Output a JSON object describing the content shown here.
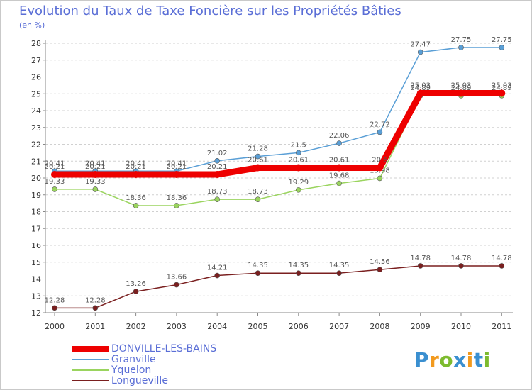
{
  "title": "Evolution du Taux de Taxe Foncière sur les Propriétés Bâties",
  "subtitle": "(en %)",
  "brand": {
    "letters": [
      "P",
      "r",
      "o",
      "x",
      "i",
      "t",
      "i"
    ],
    "colors": [
      "#3a8fd0",
      "#f29a1e",
      "#7dbb2f",
      "#3a8fd0",
      "#f29a1e",
      "#3a8fd0",
      "#7dbb2f"
    ]
  },
  "chart_data": {
    "type": "line",
    "title": "Evolution du Taux de Taxe Foncière sur les Propriétés Bâties",
    "ylabel": "(en %)",
    "xlabel": "",
    "ylim": [
      12,
      28
    ],
    "yticks": [
      12,
      13,
      14,
      15,
      16,
      17,
      18,
      19,
      20,
      21,
      22,
      23,
      24,
      25,
      26,
      27,
      28
    ],
    "grid": "horizontal-dashed",
    "legend_position": "bottom-left",
    "x": [
      "2000",
      "2001",
      "2002",
      "2003",
      "2004",
      "2005",
      "2006",
      "2007",
      "2008",
      "2009",
      "2010",
      "2011"
    ],
    "series": [
      {
        "name": "Longueville",
        "color": "#7a1f1f",
        "values": [
          12.28,
          12.28,
          13.26,
          13.66,
          14.21,
          14.35,
          14.35,
          14.35,
          14.56,
          14.78,
          14.78,
          14.78
        ],
        "labels": [
          "12.28",
          "12.28",
          "13.26",
          "13.66",
          "14.21",
          "14.35",
          "14.35",
          "14.35",
          "14.56",
          "14.78",
          "14.78",
          "14.78"
        ]
      },
      {
        "name": "Yquelon",
        "color": "#9ad45e",
        "values": [
          19.33,
          19.33,
          18.36,
          18.36,
          18.73,
          18.73,
          19.29,
          19.68,
          19.98,
          24.89,
          24.89,
          24.89
        ],
        "labels": [
          "19.33",
          "19.33",
          "18.36",
          "18.36",
          "18.73",
          "18.73",
          "19.29",
          "19.68",
          "19.98",
          "24.89",
          "24.89",
          "24.89"
        ]
      },
      {
        "name": "Granville",
        "color": "#5a9fd6",
        "values": [
          20.41,
          20.41,
          20.41,
          20.41,
          21.02,
          21.28,
          21.5,
          22.06,
          22.72,
          27.47,
          27.75,
          27.75
        ],
        "labels": [
          "20.41",
          "20.41",
          "20.41",
          "20.41",
          "21.02",
          "21.28",
          "21.5",
          "22.06",
          "22.72",
          "27.47",
          "27.75",
          "27.75"
        ]
      },
      {
        "name": "DONVILLE-LES-BAINS",
        "color": "#ee0000",
        "values": [
          20.21,
          20.21,
          20.21,
          20.21,
          20.21,
          20.61,
          20.61,
          20.61,
          20.61,
          25.03,
          25.03,
          25.03
        ],
        "labels": [
          "20.21",
          "20.21",
          "20.21",
          "20.21",
          "20.21",
          "20.61",
          "20.61",
          "20.61",
          "20.6",
          "25.03",
          "25.03",
          "25.03"
        ]
      }
    ],
    "legend": [
      "DONVILLE-LES-BAINS",
      "Granville",
      "Yquelon",
      "Longueville"
    ]
  }
}
